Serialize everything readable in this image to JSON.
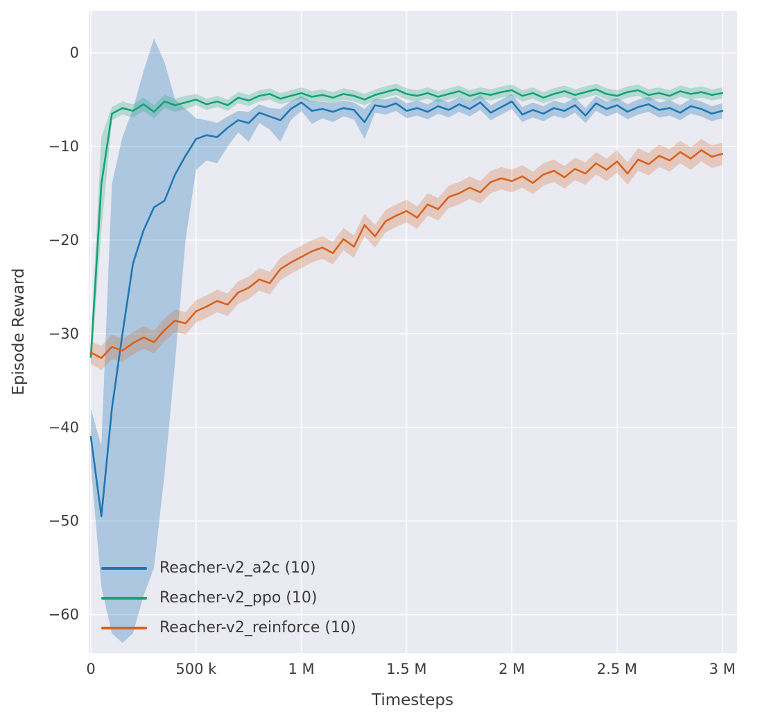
{
  "chart_data": {
    "type": "line",
    "title": "",
    "xlabel": "Timesteps",
    "ylabel": "Episode Reward",
    "xlim": [
      -10000,
      3070000
    ],
    "ylim": [
      -64.1,
      4.45
    ],
    "grid": true,
    "legend_position": "lower left",
    "colors": {
      "figure_bg": "#ffffff",
      "plot_bg": "#eaeaf2",
      "grid": "#ffffff",
      "text": "#3b3b3b"
    },
    "x": {
      "start": 0,
      "stop": 3000000,
      "points": 61
    },
    "xticks": [
      {
        "value": 0,
        "label": "0"
      },
      {
        "value": 500000,
        "label": "500 k"
      },
      {
        "value": 1000000,
        "label": "1 M"
      },
      {
        "value": 1500000,
        "label": "1.5 M"
      },
      {
        "value": 2000000,
        "label": "2 M"
      },
      {
        "value": 2500000,
        "label": "2.5 M"
      },
      {
        "value": 3000000,
        "label": "3 M"
      }
    ],
    "yticks": [
      {
        "value": 0,
        "label": "0"
      },
      {
        "value": -10,
        "label": "−10"
      },
      {
        "value": -20,
        "label": "−20"
      },
      {
        "value": -30,
        "label": "−30"
      },
      {
        "value": -40,
        "label": "−40"
      },
      {
        "value": -50,
        "label": "−50"
      },
      {
        "value": -60,
        "label": "−60"
      }
    ],
    "series": [
      {
        "name": "Reacher-v2_a2c (10)",
        "color": "#1f77b4",
        "band_opacity": 0.3,
        "mean": [
          -41,
          -49.5,
          -38,
          -30,
          -22.5,
          -19,
          -16.5,
          -15.8,
          -13,
          -11,
          -9.2,
          -8.8,
          -9,
          -8,
          -7.2,
          -7.5,
          -6.4,
          -6.8,
          -7.2,
          -6,
          -5.3,
          -6.2,
          -6,
          -6.3,
          -5.9,
          -6.1,
          -7.4,
          -5.6,
          -5.8,
          -5.4,
          -6.2,
          -5.9,
          -6.3,
          -5.7,
          -6.1,
          -5.5,
          -6,
          -5.3,
          -6.4,
          -5.8,
          -5.2,
          -6.6,
          -6.1,
          -6.5,
          -5.9,
          -6.2,
          -5.6,
          -6.7,
          -5.4,
          -6,
          -5.6,
          -6.3,
          -5.8,
          -5.5,
          -6.1,
          -5.9,
          -6.4,
          -5.7,
          -6,
          -6.5,
          -6.2
        ],
        "lo": [
          -44,
          -57,
          -62,
          -63,
          -62,
          -58,
          -55,
          -45,
          -33,
          -20,
          -12.5,
          -11.5,
          -11.8,
          -10,
          -8.5,
          -9.5,
          -7.5,
          -8.2,
          -9.5,
          -7.2,
          -6.2,
          -7.6,
          -7,
          -7.4,
          -6.8,
          -7.1,
          -9.2,
          -6.4,
          -6.6,
          -6.2,
          -7,
          -6.7,
          -7.1,
          -6.5,
          -6.9,
          -6.3,
          -6.8,
          -6.1,
          -7.2,
          -6.6,
          -6,
          -7.4,
          -6.9,
          -7.3,
          -6.7,
          -7,
          -6.4,
          -7.5,
          -6.2,
          -6.8,
          -6.4,
          -7.1,
          -6.6,
          -6.3,
          -6.9,
          -6.7,
          -7.2,
          -6.5,
          -6.8,
          -7.3,
          -7
        ],
        "hi": [
          -38,
          -42,
          -14,
          -9,
          -6,
          -2,
          1.5,
          -1,
          -5,
          -6,
          -7,
          -7.2,
          -7.5,
          -6.8,
          -6.2,
          -6.3,
          -5.5,
          -5.9,
          -6,
          -5.2,
          -4.6,
          -5.2,
          -5.2,
          -5.4,
          -5.1,
          -5.3,
          -6,
          -4.9,
          -5,
          -4.7,
          -5.4,
          -5.1,
          -5.5,
          -4.9,
          -5.3,
          -4.7,
          -5.2,
          -4.5,
          -5.6,
          -5,
          -4.4,
          -5.8,
          -5.3,
          -5.7,
          -5.1,
          -5.4,
          -4.8,
          -5.9,
          -4.6,
          -5.2,
          -4.8,
          -5.5,
          -5,
          -4.7,
          -5.3,
          -5.1,
          -5.6,
          -4.9,
          -5.2,
          -5.7,
          -5.4
        ]
      },
      {
        "name": "Reacher-v2_ppo (10)",
        "color": "#14a374",
        "band_opacity": 0.25,
        "mean": [
          -32.5,
          -14,
          -6.5,
          -5.9,
          -6.2,
          -5.5,
          -6.3,
          -5.2,
          -5.6,
          -5.3,
          -5,
          -5.5,
          -5.2,
          -5.6,
          -4.8,
          -5.1,
          -4.6,
          -4.4,
          -4.9,
          -4.6,
          -4.3,
          -4.7,
          -4.5,
          -4.8,
          -4.4,
          -4.6,
          -5,
          -4.5,
          -4.2,
          -3.9,
          -4.4,
          -4.6,
          -4.3,
          -4.7,
          -4.4,
          -4.1,
          -4.6,
          -4.3,
          -4.5,
          -4.2,
          -4,
          -4.6,
          -4.3,
          -4.8,
          -4.4,
          -4.1,
          -4.5,
          -4.2,
          -3.9,
          -4.4,
          -4.6,
          -4.2,
          -4,
          -4.5,
          -4.3,
          -4.6,
          -4.1,
          -4.4,
          -4.2,
          -4.5,
          -4.3
        ],
        "lo": [
          -34,
          -19,
          -7.2,
          -6.6,
          -6.9,
          -6.2,
          -7,
          -5.9,
          -6.3,
          -6,
          -5.6,
          -6.1,
          -5.8,
          -6.2,
          -5.4,
          -5.7,
          -5.2,
          -5,
          -5.5,
          -5.2,
          -4.9,
          -5.3,
          -5.1,
          -5.4,
          -5,
          -5.2,
          -5.6,
          -5.1,
          -4.8,
          -4.5,
          -5,
          -5.2,
          -4.9,
          -5.3,
          -5,
          -4.7,
          -5.2,
          -4.9,
          -5.1,
          -4.8,
          -4.6,
          -5.2,
          -4.9,
          -5.4,
          -5,
          -4.7,
          -5.1,
          -4.8,
          -4.5,
          -5,
          -5.2,
          -4.8,
          -4.6,
          -5.1,
          -4.9,
          -5.2,
          -4.7,
          -5,
          -4.8,
          -5.1,
          -4.9
        ],
        "hi": [
          -31,
          -9,
          -5.8,
          -5.2,
          -5.5,
          -4.8,
          -5.6,
          -4.5,
          -4.9,
          -4.6,
          -4.4,
          -4.9,
          -4.6,
          -5,
          -4.2,
          -4.5,
          -4,
          -3.8,
          -4.3,
          -4,
          -3.7,
          -4.1,
          -3.9,
          -4.2,
          -3.8,
          -4,
          -4.4,
          -3.9,
          -3.6,
          -3.3,
          -3.8,
          -4,
          -3.7,
          -4.1,
          -3.8,
          -3.5,
          -4,
          -3.7,
          -3.9,
          -3.6,
          -3.4,
          -4,
          -3.7,
          -4.2,
          -3.8,
          -3.5,
          -3.9,
          -3.6,
          -3.3,
          -3.8,
          -4,
          -3.6,
          -3.4,
          -3.9,
          -3.7,
          -4,
          -3.5,
          -3.8,
          -3.6,
          -3.9,
          -3.7
        ]
      },
      {
        "name": "Reacher-v2_reinforce (10)",
        "color": "#d8621e",
        "band_opacity": 0.25,
        "mean": [
          -32,
          -32.6,
          -31.4,
          -31.8,
          -31,
          -30.4,
          -30.9,
          -29.6,
          -28.6,
          -28.9,
          -27.6,
          -27.1,
          -26.5,
          -26.9,
          -25.6,
          -25.1,
          -24.2,
          -24.6,
          -23.1,
          -22.4,
          -21.8,
          -21.2,
          -20.8,
          -21.4,
          -19.9,
          -20.7,
          -18.4,
          -19.6,
          -18,
          -17.4,
          -16.9,
          -17.6,
          -16.2,
          -16.7,
          -15.4,
          -15,
          -14.4,
          -14.9,
          -13.8,
          -13.4,
          -13.7,
          -13.2,
          -13.9,
          -13,
          -12.6,
          -13.3,
          -12.4,
          -12.9,
          -11.8,
          -12.5,
          -11.6,
          -12.9,
          -11.4,
          -11.9,
          -11,
          -11.5,
          -10.6,
          -11.3,
          -10.4,
          -11.1,
          -10.8
        ],
        "lo": [
          -33.2,
          -33.9,
          -32.7,
          -33,
          -32.2,
          -31.6,
          -32.1,
          -30.8,
          -29.8,
          -30.1,
          -28.8,
          -28.3,
          -27.7,
          -28.1,
          -26.8,
          -26.3,
          -25.4,
          -25.8,
          -24.3,
          -23.6,
          -23,
          -22.4,
          -22,
          -22.6,
          -21.1,
          -21.9,
          -19.6,
          -20.8,
          -19.2,
          -18.6,
          -18.1,
          -18.8,
          -17.4,
          -17.9,
          -16.6,
          -16.2,
          -15.6,
          -16.1,
          -15,
          -14.6,
          -14.9,
          -14.4,
          -15.1,
          -14.2,
          -13.8,
          -14.5,
          -13.6,
          -14.1,
          -13,
          -13.7,
          -12.8,
          -14.1,
          -12.6,
          -13.1,
          -12.2,
          -12.7,
          -11.8,
          -12.5,
          -11.6,
          -12.3,
          -12
        ],
        "hi": [
          -30.8,
          -31.3,
          -30.1,
          -30.6,
          -29.8,
          -29.2,
          -29.7,
          -28.4,
          -27.4,
          -27.7,
          -26.4,
          -25.9,
          -25.3,
          -25.7,
          -24.4,
          -23.9,
          -23,
          -23.4,
          -21.9,
          -21.2,
          -20.6,
          -20,
          -19.6,
          -20.2,
          -18.7,
          -19.5,
          -17.2,
          -18.4,
          -16.8,
          -16.2,
          -15.7,
          -16.4,
          -15,
          -15.5,
          -14.2,
          -13.8,
          -13.2,
          -13.7,
          -12.6,
          -12.2,
          -12.5,
          -12,
          -12.7,
          -11.8,
          -11.4,
          -12.1,
          -11.2,
          -11.7,
          -10.6,
          -11.3,
          -10.4,
          -11.7,
          -10.2,
          -10.7,
          -9.8,
          -10.3,
          -9.4,
          -10.1,
          -9.2,
          -9.9,
          -9.6
        ]
      }
    ]
  }
}
